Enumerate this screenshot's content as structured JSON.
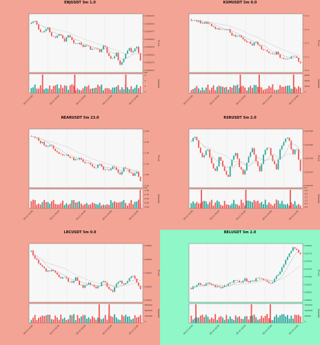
{
  "panels": [
    {
      "title": "ENJUSDT 5m 1.0",
      "bg": "#f4a494",
      "price_label": "Price",
      "volume_label": "Volume",
      "date_labels": [
        "08-14 14:00",
        "08-14 16:00",
        "08-14 18:00",
        "08-14 20:00",
        "08-14 22:00"
      ],
      "price_ticks": [
        "0.008525",
        "0.008500",
        "0.008475",
        "0.008450",
        "0.008425",
        "0.008400",
        "0.008375",
        "0.008350"
      ],
      "volume_ticks": [
        "3",
        "2",
        "1",
        "0"
      ],
      "volume_exp": "1e6",
      "chart_data": {
        "type": "candlestick",
        "ylim": [
          0.00834,
          0.00853
        ],
        "close_path": [
          0.0085,
          0.00851,
          0.00848,
          0.00847,
          0.00849,
          0.00846,
          0.00845,
          0.00847,
          0.00844,
          0.00846,
          0.00845,
          0.00843,
          0.00844,
          0.00842,
          0.00843,
          0.00841,
          0.00842,
          0.0084,
          0.00843,
          0.00839,
          0.00838,
          0.0084,
          0.00836,
          0.00839,
          0.00842,
          0.0084,
          0.00843,
          0.00838
        ],
        "volume_spikes": [
          0.11,
          0.4,
          0.86
        ]
      }
    },
    {
      "title": "KSMUSDT 5m 0.0",
      "bg": "#f4a494",
      "price_label": "Price",
      "volume_label": "Volume",
      "date_labels": [
        "08-14 14:00",
        "08-14 16:00",
        "08-14 18:00",
        "08-14 20:00",
        "08-14 22:00"
      ],
      "price_ticks": [
        "17.4",
        "17.3",
        "17.2",
        "17.1",
        "17.0"
      ],
      "volume_ticks": [
        "6000",
        "4000",
        "2000",
        "0"
      ],
      "volume_exp": "",
      "chart_data": {
        "type": "candlestick",
        "ylim": [
          16.95,
          17.48
        ],
        "close_path": [
          17.44,
          17.43,
          17.42,
          17.4,
          17.41,
          17.38,
          17.36,
          17.35,
          17.33,
          17.34,
          17.3,
          17.28,
          17.29,
          17.25,
          17.23,
          17.2,
          17.22,
          17.18,
          17.15,
          17.12,
          17.1,
          17.13,
          17.08,
          17.05,
          17.06,
          17.1,
          17.07,
          17.02
        ],
        "volume_spikes": [
          0.45,
          0.62,
          0.93
        ]
      }
    },
    {
      "title": "NEARUSDT 5m 23.0",
      "bg": "#f4a494",
      "price_label": "Price",
      "volume_label": "Volume",
      "date_labels": [
        "08-14 14:00",
        "08-14 16:00",
        "08-14 18:00",
        "08-14 20:00",
        "08-14 22:00"
      ],
      "price_ticks": [
        "3.40",
        "3.35",
        "3.30",
        "3.25",
        "3.20",
        "3.15"
      ],
      "volume_ticks": [
        "1.00",
        "0.75",
        "0.50",
        "0.25",
        "0.00"
      ],
      "volume_exp": "1e6",
      "chart_data": {
        "type": "candlestick",
        "ylim": [
          3.12,
          3.42
        ],
        "close_path": [
          3.39,
          3.38,
          3.36,
          3.35,
          3.33,
          3.34,
          3.31,
          3.3,
          3.28,
          3.29,
          3.27,
          3.26,
          3.27,
          3.25,
          3.24,
          3.23,
          3.22,
          3.24,
          3.21,
          3.2,
          3.22,
          3.21,
          3.19,
          3.22,
          3.21,
          3.18,
          3.2,
          3.15
        ],
        "volume_spikes": [
          0.99
        ]
      }
    },
    {
      "title": "RSRUSDT 5m 2.0",
      "bg": "#f4a494",
      "price_label": "Price",
      "volume_label": "Volume",
      "date_labels": [
        "08-14 14:00",
        "08-14 16:00",
        "08-14 18:00",
        "08-14 20:00",
        "08-14 22:00"
      ],
      "price_ticks": [
        "0.00766",
        "0.00765",
        "0.00764",
        "0.00763",
        "0.00762"
      ],
      "volume_ticks": [
        "2.5",
        "2.0",
        "1.5",
        "1.0",
        "0.5",
        "0.0"
      ],
      "volume_exp": "1e7",
      "chart_data": {
        "type": "candlestick",
        "ylim": [
          0.007615,
          0.007665
        ],
        "close_path": [
          0.007655,
          0.00766,
          0.007648,
          0.00764,
          0.00765,
          0.007636,
          0.007628,
          0.007642,
          0.00763,
          0.007622,
          0.007638,
          0.007645,
          0.007632,
          0.007625,
          0.00764,
          0.00765,
          0.007638,
          0.007628,
          0.007645,
          0.007652,
          0.00764,
          0.00763,
          0.007648,
          0.007655,
          0.00766,
          0.007642,
          0.00765,
          0.00763
        ],
        "volume_spikes": [
          0.1,
          0.5,
          0.9
        ]
      }
    },
    {
      "title": "LRCUSDT 5m 0.0",
      "bg": "#f4a494",
      "price_label": "Price",
      "volume_label": "Volume",
      "date_labels": [
        "08-14 14:00",
        "08-14 16:00",
        "08-14 18:00",
        "08-14 20:00",
        "08-14 22:00"
      ],
      "price_ticks": [
        "0.0865",
        "0.0860",
        "0.0855",
        "0.0850",
        "0.0845"
      ],
      "volume_ticks": [
        "300000",
        "200000",
        "100000",
        "0"
      ],
      "volume_exp": "",
      "chart_data": {
        "type": "candlestick",
        "ylim": [
          0.0843,
          0.0868
        ],
        "close_path": [
          0.0865,
          0.0862,
          0.086,
          0.0858,
          0.0856,
          0.0857,
          0.0855,
          0.0853,
          0.0854,
          0.0852,
          0.0851,
          0.0853,
          0.085,
          0.0849,
          0.0851,
          0.085,
          0.0848,
          0.085,
          0.0852,
          0.0849,
          0.0847,
          0.085,
          0.0852,
          0.085,
          0.0853,
          0.0855,
          0.0852,
          0.0848
        ],
        "volume_spikes": [
          0.62,
          0.71
        ]
      }
    },
    {
      "title": "BELUSDT 5m 2.0",
      "bg": "#8ff7c8",
      "price_label": "Price",
      "volume_label": "Volume",
      "date_labels": [
        "08-14 14:00",
        "08-14 16:00",
        "08-14 18:00",
        "08-14 20:00",
        "08-14 22:00"
      ],
      "price_ticks": [
        "0.6800",
        "0.6775",
        "0.6750",
        "0.6725",
        "0.6700",
        "0.6675",
        "0.6650",
        "0.6625"
      ],
      "volume_ticks": [
        "150000",
        "100000",
        "50000",
        "0"
      ],
      "volume_exp": "",
      "chart_data": {
        "type": "candlestick",
        "ylim": [
          0.6615,
          0.681
        ],
        "close_path": [
          0.666,
          0.667,
          0.6675,
          0.6668,
          0.668,
          0.6672,
          0.6665,
          0.666,
          0.6668,
          0.6675,
          0.668,
          0.6685,
          0.6678,
          0.669,
          0.6685,
          0.668,
          0.6692,
          0.6698,
          0.6688,
          0.6682,
          0.6678,
          0.67,
          0.672,
          0.6745,
          0.677,
          0.68,
          0.679,
          0.678
        ],
        "volume_spikes": [
          0.05,
          0.55,
          0.72
        ]
      }
    }
  ]
}
